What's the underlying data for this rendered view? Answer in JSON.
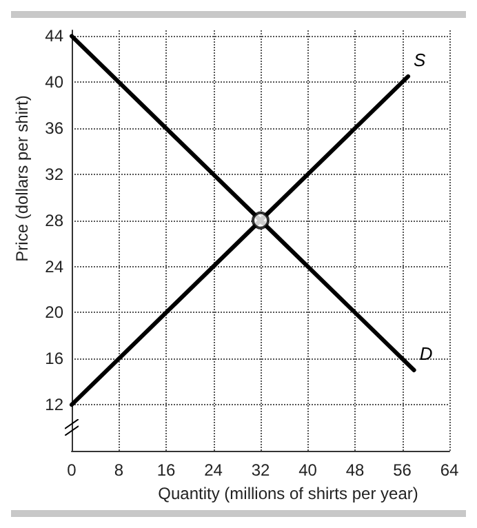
{
  "chart_data": {
    "type": "line",
    "xlabel": "Quantity (millions of shirts per year)",
    "ylabel": "Price (dollars per shirt)",
    "xlim": [
      0,
      64
    ],
    "xticks": [
      0,
      8,
      16,
      24,
      32,
      40,
      48,
      56,
      64
    ],
    "ylim": [
      8,
      44.5
    ],
    "yticks": [
      12,
      16,
      20,
      24,
      28,
      32,
      36,
      40,
      44
    ],
    "grid": true,
    "legend": false,
    "marker": "none",
    "line_style": "solid",
    "series": [
      {
        "name": "S",
        "color": "#000000",
        "x": [
          0,
          32,
          57
        ],
        "values": [
          12,
          28,
          40.5
        ]
      },
      {
        "name": "D",
        "color": "#000000",
        "x": [
          0,
          32,
          58
        ],
        "values": [
          44,
          28,
          15
        ]
      },
      {
        "type": "scatter",
        "marker": "circle",
        "color": "#000000",
        "x": [
          32
        ],
        "values": [
          28
        ]
      }
    ]
  }
}
